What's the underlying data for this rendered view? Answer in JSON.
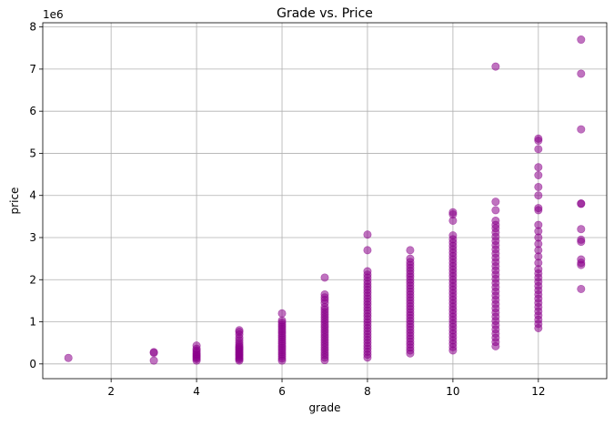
{
  "chart_data": {
    "type": "scatter",
    "title": "Grade vs. Price",
    "xlabel": "grade",
    "ylabel": "price",
    "y_multiplier_label": "1e6",
    "xlim": [
      0.4,
      13.6
    ],
    "ylim": [
      -350000,
      8100000
    ],
    "x_ticks": [
      2,
      4,
      6,
      8,
      10,
      12
    ],
    "y_ticks": [
      0,
      1000000,
      2000000,
      3000000,
      4000000,
      5000000,
      6000000,
      7000000,
      8000000
    ],
    "y_tick_labels": [
      "0",
      "1",
      "2",
      "3",
      "4",
      "5",
      "6",
      "7",
      "8"
    ],
    "grid": true,
    "marker_color": "#8b008b",
    "marker_alpha": 0.55,
    "series": [
      {
        "points": [
          [
            1,
            142000
          ],
          [
            3,
            80000
          ],
          [
            3,
            262000
          ],
          [
            3,
            280000
          ],
          [
            4,
            80000
          ],
          [
            4,
            120000
          ],
          [
            4,
            150000
          ],
          [
            4,
            180000
          ],
          [
            4,
            210000
          ],
          [
            4,
            240000
          ],
          [
            4,
            280000
          ],
          [
            4,
            320000
          ],
          [
            4,
            360000
          ],
          [
            4,
            435000
          ],
          [
            5,
            80000
          ],
          [
            5,
            110000
          ],
          [
            5,
            140000
          ],
          [
            5,
            170000
          ],
          [
            5,
            200000
          ],
          [
            5,
            230000
          ],
          [
            5,
            260000
          ],
          [
            5,
            290000
          ],
          [
            5,
            320000
          ],
          [
            5,
            350000
          ],
          [
            5,
            380000
          ],
          [
            5,
            410000
          ],
          [
            5,
            450000
          ],
          [
            5,
            500000
          ],
          [
            5,
            560000
          ],
          [
            5,
            620000
          ],
          [
            5,
            700000
          ],
          [
            5,
            760000
          ],
          [
            5,
            800000
          ],
          [
            6,
            80000
          ],
          [
            6,
            130000
          ],
          [
            6,
            180000
          ],
          [
            6,
            230000
          ],
          [
            6,
            280000
          ],
          [
            6,
            330000
          ],
          [
            6,
            380000
          ],
          [
            6,
            430000
          ],
          [
            6,
            480000
          ],
          [
            6,
            530000
          ],
          [
            6,
            580000
          ],
          [
            6,
            630000
          ],
          [
            6,
            680000
          ],
          [
            6,
            730000
          ],
          [
            6,
            780000
          ],
          [
            6,
            830000
          ],
          [
            6,
            880000
          ],
          [
            6,
            930000
          ],
          [
            6,
            980000
          ],
          [
            6,
            1030000
          ],
          [
            6,
            1200000
          ],
          [
            7,
            90000
          ],
          [
            7,
            150000
          ],
          [
            7,
            210000
          ],
          [
            7,
            270000
          ],
          [
            7,
            330000
          ],
          [
            7,
            390000
          ],
          [
            7,
            450000
          ],
          [
            7,
            510000
          ],
          [
            7,
            570000
          ],
          [
            7,
            630000
          ],
          [
            7,
            690000
          ],
          [
            7,
            750000
          ],
          [
            7,
            810000
          ],
          [
            7,
            870000
          ],
          [
            7,
            930000
          ],
          [
            7,
            990000
          ],
          [
            7,
            1050000
          ],
          [
            7,
            1110000
          ],
          [
            7,
            1170000
          ],
          [
            7,
            1230000
          ],
          [
            7,
            1290000
          ],
          [
            7,
            1350000
          ],
          [
            7,
            1450000
          ],
          [
            7,
            1520000
          ],
          [
            7,
            1580000
          ],
          [
            7,
            1650000
          ],
          [
            7,
            2050000
          ],
          [
            8,
            150000
          ],
          [
            8,
            220000
          ],
          [
            8,
            290000
          ],
          [
            8,
            360000
          ],
          [
            8,
            430000
          ],
          [
            8,
            500000
          ],
          [
            8,
            570000
          ],
          [
            8,
            640000
          ],
          [
            8,
            710000
          ],
          [
            8,
            780000
          ],
          [
            8,
            850000
          ],
          [
            8,
            920000
          ],
          [
            8,
            990000
          ],
          [
            8,
            1060000
          ],
          [
            8,
            1130000
          ],
          [
            8,
            1200000
          ],
          [
            8,
            1270000
          ],
          [
            8,
            1340000
          ],
          [
            8,
            1410000
          ],
          [
            8,
            1480000
          ],
          [
            8,
            1550000
          ],
          [
            8,
            1620000
          ],
          [
            8,
            1690000
          ],
          [
            8,
            1760000
          ],
          [
            8,
            1830000
          ],
          [
            8,
            1900000
          ],
          [
            8,
            1970000
          ],
          [
            8,
            2050000
          ],
          [
            8,
            2120000
          ],
          [
            8,
            2200000
          ],
          [
            8,
            2700000
          ],
          [
            8,
            3070000
          ],
          [
            9,
            250000
          ],
          [
            9,
            320000
          ],
          [
            9,
            390000
          ],
          [
            9,
            460000
          ],
          [
            9,
            530000
          ],
          [
            9,
            600000
          ],
          [
            9,
            670000
          ],
          [
            9,
            740000
          ],
          [
            9,
            810000
          ],
          [
            9,
            880000
          ],
          [
            9,
            950000
          ],
          [
            9,
            1020000
          ],
          [
            9,
            1090000
          ],
          [
            9,
            1160000
          ],
          [
            9,
            1230000
          ],
          [
            9,
            1300000
          ],
          [
            9,
            1370000
          ],
          [
            9,
            1440000
          ],
          [
            9,
            1510000
          ],
          [
            9,
            1580000
          ],
          [
            9,
            1650000
          ],
          [
            9,
            1720000
          ],
          [
            9,
            1790000
          ],
          [
            9,
            1860000
          ],
          [
            9,
            1930000
          ],
          [
            9,
            2000000
          ],
          [
            9,
            2070000
          ],
          [
            9,
            2140000
          ],
          [
            9,
            2210000
          ],
          [
            9,
            2280000
          ],
          [
            9,
            2350000
          ],
          [
            9,
            2420000
          ],
          [
            9,
            2500000
          ],
          [
            9,
            2700000
          ],
          [
            10,
            320000
          ],
          [
            10,
            400000
          ],
          [
            10,
            480000
          ],
          [
            10,
            560000
          ],
          [
            10,
            640000
          ],
          [
            10,
            720000
          ],
          [
            10,
            800000
          ],
          [
            10,
            880000
          ],
          [
            10,
            960000
          ],
          [
            10,
            1040000
          ],
          [
            10,
            1120000
          ],
          [
            10,
            1200000
          ],
          [
            10,
            1280000
          ],
          [
            10,
            1360000
          ],
          [
            10,
            1440000
          ],
          [
            10,
            1520000
          ],
          [
            10,
            1600000
          ],
          [
            10,
            1680000
          ],
          [
            10,
            1760000
          ],
          [
            10,
            1840000
          ],
          [
            10,
            1920000
          ],
          [
            10,
            2000000
          ],
          [
            10,
            2080000
          ],
          [
            10,
            2160000
          ],
          [
            10,
            2240000
          ],
          [
            10,
            2320000
          ],
          [
            10,
            2400000
          ],
          [
            10,
            2480000
          ],
          [
            10,
            2560000
          ],
          [
            10,
            2640000
          ],
          [
            10,
            2720000
          ],
          [
            10,
            2800000
          ],
          [
            10,
            2880000
          ],
          [
            10,
            2960000
          ],
          [
            10,
            3050000
          ],
          [
            10,
            3400000
          ],
          [
            10,
            3550000
          ],
          [
            10,
            3600000
          ],
          [
            11,
            420000
          ],
          [
            11,
            520000
          ],
          [
            11,
            620000
          ],
          [
            11,
            720000
          ],
          [
            11,
            820000
          ],
          [
            11,
            920000
          ],
          [
            11,
            1020000
          ],
          [
            11,
            1120000
          ],
          [
            11,
            1220000
          ],
          [
            11,
            1320000
          ],
          [
            11,
            1420000
          ],
          [
            11,
            1520000
          ],
          [
            11,
            1620000
          ],
          [
            11,
            1720000
          ],
          [
            11,
            1820000
          ],
          [
            11,
            1920000
          ],
          [
            11,
            2020000
          ],
          [
            11,
            2120000
          ],
          [
            11,
            2220000
          ],
          [
            11,
            2320000
          ],
          [
            11,
            2420000
          ],
          [
            11,
            2520000
          ],
          [
            11,
            2620000
          ],
          [
            11,
            2720000
          ],
          [
            11,
            2820000
          ],
          [
            11,
            2920000
          ],
          [
            11,
            3020000
          ],
          [
            11,
            3120000
          ],
          [
            11,
            3220000
          ],
          [
            11,
            3300000
          ],
          [
            11,
            3400000
          ],
          [
            11,
            3650000
          ],
          [
            11,
            3850000
          ],
          [
            11,
            7060000
          ],
          [
            12,
            850000
          ],
          [
            12,
            950000
          ],
          [
            12,
            1050000
          ],
          [
            12,
            1150000
          ],
          [
            12,
            1250000
          ],
          [
            12,
            1350000
          ],
          [
            12,
            1450000
          ],
          [
            12,
            1550000
          ],
          [
            12,
            1650000
          ],
          [
            12,
            1750000
          ],
          [
            12,
            1850000
          ],
          [
            12,
            1950000
          ],
          [
            12,
            2050000
          ],
          [
            12,
            2150000
          ],
          [
            12,
            2250000
          ],
          [
            12,
            2400000
          ],
          [
            12,
            2550000
          ],
          [
            12,
            2700000
          ],
          [
            12,
            2850000
          ],
          [
            12,
            3000000
          ],
          [
            12,
            3150000
          ],
          [
            12,
            3300000
          ],
          [
            12,
            3650000
          ],
          [
            12,
            3700000
          ],
          [
            12,
            4000000
          ],
          [
            12,
            4200000
          ],
          [
            12,
            4480000
          ],
          [
            12,
            4670000
          ],
          [
            12,
            5100000
          ],
          [
            12,
            5300000
          ],
          [
            12,
            5350000
          ],
          [
            13,
            1780000
          ],
          [
            13,
            2350000
          ],
          [
            13,
            2400000
          ],
          [
            13,
            2480000
          ],
          [
            13,
            2900000
          ],
          [
            13,
            2950000
          ],
          [
            13,
            3200000
          ],
          [
            13,
            3800000
          ],
          [
            13,
            3810000
          ],
          [
            13,
            5570000
          ],
          [
            13,
            6890000
          ],
          [
            13,
            7700000
          ]
        ]
      }
    ]
  }
}
